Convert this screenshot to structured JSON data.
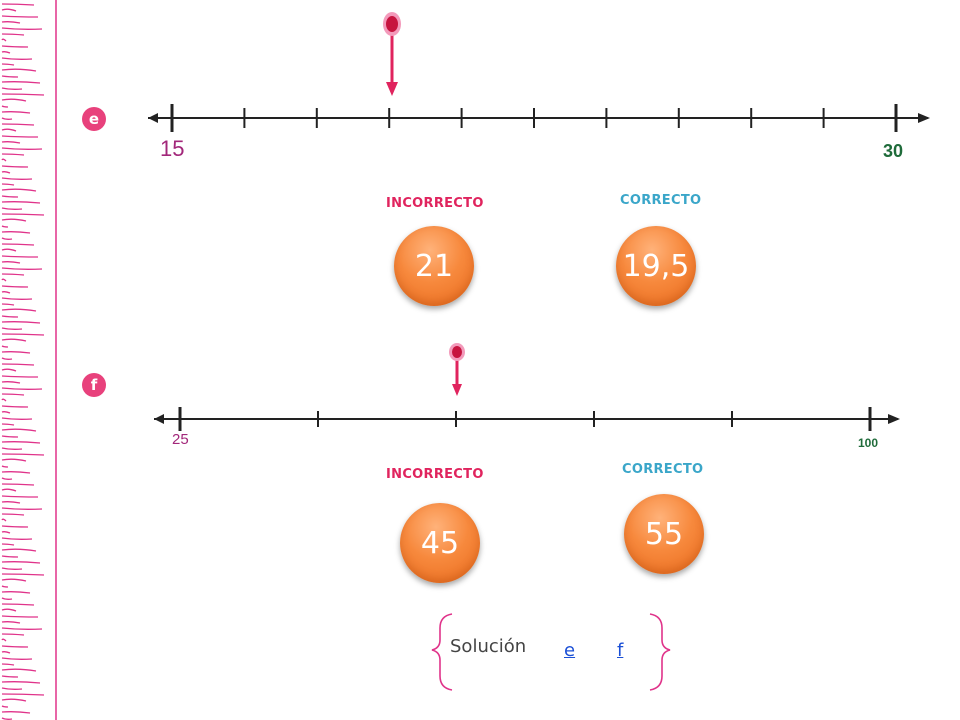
{
  "exercise_e": {
    "badge": "e",
    "start_label": "15",
    "end_label": "30",
    "options": [
      {
        "status": "INCORRECTO",
        "value": "21"
      },
      {
        "status": "CORRECTO",
        "value": "19,5"
      }
    ]
  },
  "exercise_f": {
    "badge": "f",
    "start_label": "25",
    "end_label": "100",
    "options": [
      {
        "status": "INCORRECTO",
        "value": "45"
      },
      {
        "status": "CORRECTO",
        "value": "55"
      }
    ]
  },
  "solution": {
    "label": "Solución",
    "links": [
      "e",
      "f"
    ]
  },
  "colors": {
    "accent_pink": "#e8417c",
    "incorrect": "#e0245e",
    "correct": "#3aa6c9",
    "answer_orange": "#f7893d",
    "end_label_green": "#1f6b3a",
    "start_label_purple": "#a2277a"
  }
}
